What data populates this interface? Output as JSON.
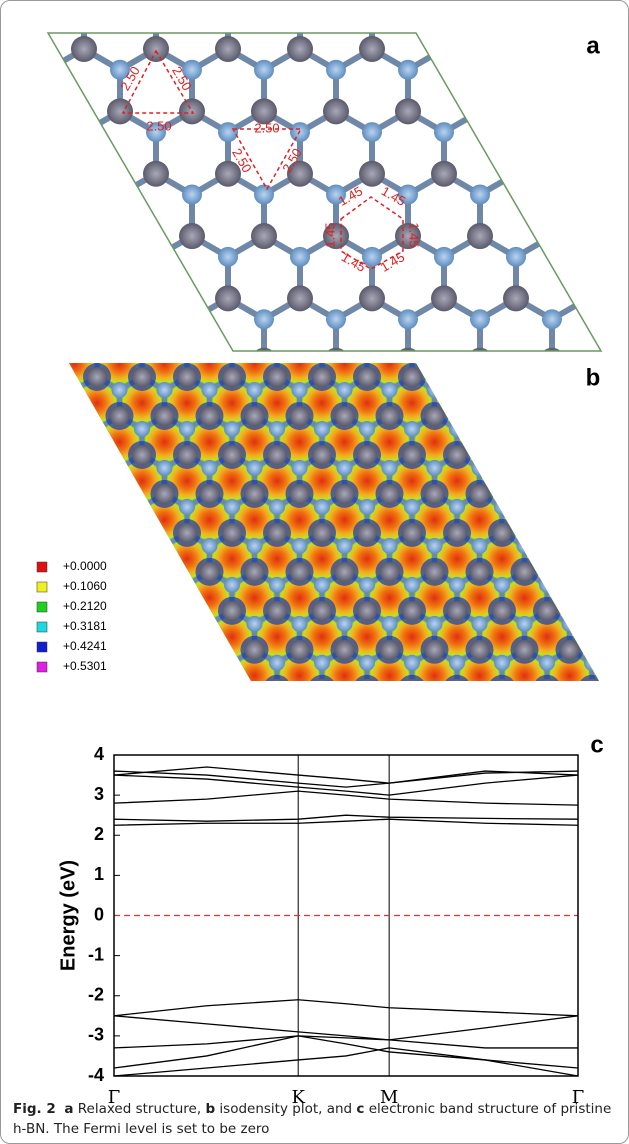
{
  "panel_a": {
    "label": "a",
    "distances": [
      "2.50",
      "2.50",
      "2.50",
      "2.50",
      "2.50",
      "2.50"
    ],
    "bond_lengths": [
      "1.45",
      "1.45",
      "1.45",
      "1.45",
      "1.45",
      "1.45"
    ]
  },
  "panel_b": {
    "label": "b",
    "legend": [
      "+0.0000",
      "+0.1060",
      "+0.2120",
      "+0.3181",
      "+0.4241",
      "+0.5301"
    ],
    "legend_colors": [
      "#e01010",
      "#f0f020",
      "#20d020",
      "#20d8e0",
      "#1020d0",
      "#e020e0"
    ]
  },
  "chart_data": {
    "type": "line",
    "panel_label": "c",
    "ylabel": "Energy (eV)",
    "x": [
      0,
      0.2,
      0.397,
      0.5,
      0.593,
      0.8,
      1
    ],
    "xlim": [
      0,
      1
    ],
    "xticks": [
      {
        "value": 0,
        "label": "Γ"
      },
      {
        "value": 0.397,
        "label": "K"
      },
      {
        "value": 0.593,
        "label": "M"
      },
      {
        "value": 1,
        "label": "Γ"
      }
    ],
    "ylim": [
      -4,
      4
    ],
    "yticks": [
      -4,
      -3,
      -2,
      -1,
      0,
      1,
      2,
      3,
      4
    ],
    "fermi_level": 0,
    "fermi_color": "#e03030",
    "series": [
      {
        "color": "#000000",
        "values": [
          -2.5,
          -2.25,
          -2.1,
          -2.2,
          -2.3,
          -2.4,
          -2.5
        ]
      },
      {
        "color": "#000000",
        "values": [
          -2.5,
          -2.7,
          -2.9,
          -3.0,
          -3.1,
          -2.8,
          -2.5
        ]
      },
      {
        "color": "#000000",
        "values": [
          -3.3,
          -3.2,
          -3.0,
          -3.05,
          -3.1,
          -3.3,
          -3.3
        ]
      },
      {
        "color": "#000000",
        "values": [
          -3.8,
          -3.5,
          -3.0,
          -3.2,
          -3.4,
          -3.6,
          -3.8
        ]
      },
      {
        "color": "#000000",
        "values": [
          -4,
          -3.8,
          -3.6,
          -3.5,
          -3.3,
          -3.6,
          -4
        ]
      },
      {
        "color": "#000000",
        "values": [
          2.25,
          2.3,
          2.3,
          2.35,
          2.4,
          2.3,
          2.25
        ]
      },
      {
        "color": "#000000",
        "values": [
          2.4,
          2.35,
          2.4,
          2.5,
          2.45,
          2.42,
          2.4
        ]
      },
      {
        "color": "#000000",
        "values": [
          2.8,
          2.9,
          3.1,
          3.0,
          2.9,
          2.8,
          2.75
        ]
      },
      {
        "color": "#000000",
        "values": [
          3.5,
          3.4,
          3.2,
          3.1,
          3.0,
          3.3,
          3.5
        ]
      },
      {
        "color": "#000000",
        "values": [
          3.5,
          3.7,
          3.5,
          3.4,
          3.3,
          3.6,
          3.5
        ]
      },
      {
        "color": "#000000",
        "values": [
          3.6,
          3.5,
          3.3,
          3.2,
          3.3,
          3.55,
          3.6
        ]
      }
    ]
  },
  "caption": {
    "figure": "Fig. 2",
    "segments": [
      "a",
      " Relaxed structure, ",
      "b",
      " isodensity plot, and ",
      "c",
      " electronic band structure of pristine h-BN. The Fermi level is set to be zero"
    ]
  }
}
